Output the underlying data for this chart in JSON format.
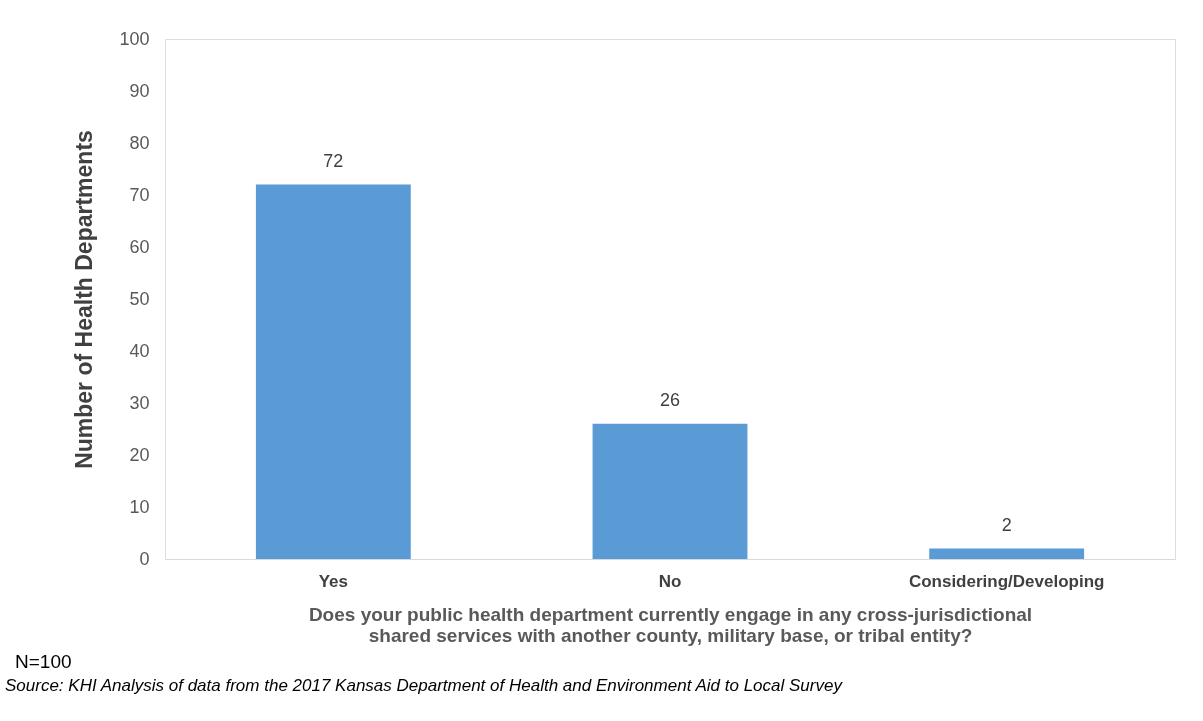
{
  "chart_data": {
    "type": "bar",
    "categories": [
      "Yes",
      "No",
      "Considering/Developing"
    ],
    "values": [
      72,
      26,
      2
    ],
    "color": "#5b9bd5",
    "ylabel": "Number of Health Departments",
    "xlabel": "Does your public health department currently engage in any cross-jurisdictional shared services with another county, military base, or tribal entity?",
    "ylim": [
      0,
      100
    ],
    "yticks": [
      0,
      10,
      20,
      30,
      40,
      50,
      60,
      70,
      80,
      90,
      100
    ],
    "grid": false,
    "data_labels": true,
    "annotations": [
      "N=100",
      "Source: KHI Analysis of data from the 2017 Kansas Department of Health and Environment Aid to Local Survey"
    ]
  }
}
